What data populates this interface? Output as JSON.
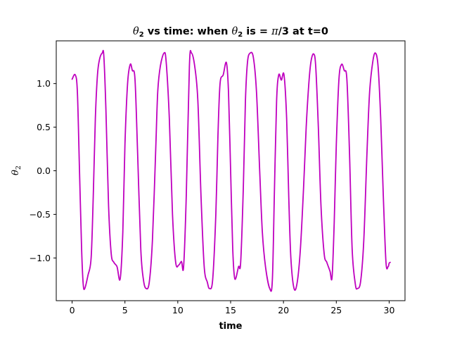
{
  "chart_data": {
    "type": "line",
    "title": {
      "theta1": "θ",
      "sub1": "2",
      "mid": " vs time: when ",
      "theta2": "θ",
      "sub2": "2",
      "mid2": " is = ",
      "pi": "π",
      "tail": "/3 at t=0"
    },
    "xlabel": "time",
    "ylabel": {
      "symbol": "θ",
      "sub": "2"
    },
    "xlim": [
      -1.5,
      31.5
    ],
    "ylim": [
      -1.49,
      1.49
    ],
    "x_ticks": [
      0,
      5,
      10,
      15,
      20,
      25,
      30
    ],
    "x_tick_labels": [
      "0",
      "5",
      "10",
      "15",
      "20",
      "25",
      "30"
    ],
    "y_ticks": [
      -1.0,
      -0.5,
      0.0,
      0.5,
      1.0
    ],
    "y_tick_labels": [
      "−1.0",
      "−0.5",
      "0.0",
      "0.5",
      "1.0"
    ],
    "grid": false,
    "series": [
      {
        "color": "#bf00bf",
        "points": [
          [
            0.0,
            1.05
          ],
          [
            0.3,
            1.1
          ],
          [
            0.5,
            0.9
          ],
          [
            0.7,
            0.0
          ],
          [
            0.9,
            -0.9
          ],
          [
            1.05,
            -1.3
          ],
          [
            1.2,
            -1.35
          ],
          [
            1.5,
            -1.2
          ],
          [
            1.8,
            -1.0
          ],
          [
            2.0,
            -0.3
          ],
          [
            2.2,
            0.6
          ],
          [
            2.4,
            1.1
          ],
          [
            2.6,
            1.28
          ],
          [
            2.85,
            1.35
          ],
          [
            3.0,
            1.32
          ],
          [
            3.2,
            0.7
          ],
          [
            3.45,
            -0.4
          ],
          [
            3.7,
            -0.95
          ],
          [
            3.95,
            -1.05
          ],
          [
            4.25,
            -1.1
          ],
          [
            4.55,
            -1.24
          ],
          [
            4.8,
            -0.7
          ],
          [
            5.0,
            0.3
          ],
          [
            5.25,
            1.0
          ],
          [
            5.5,
            1.22
          ],
          [
            5.7,
            1.15
          ],
          [
            5.95,
            1.05
          ],
          [
            6.2,
            0.2
          ],
          [
            6.5,
            -0.9
          ],
          [
            6.75,
            -1.25
          ],
          [
            7.0,
            -1.35
          ],
          [
            7.3,
            -1.28
          ],
          [
            7.6,
            -0.8
          ],
          [
            7.9,
            0.2
          ],
          [
            8.1,
            0.9
          ],
          [
            8.35,
            1.2
          ],
          [
            8.7,
            1.35
          ],
          [
            8.9,
            1.25
          ],
          [
            9.2,
            0.6
          ],
          [
            9.5,
            -0.5
          ],
          [
            9.8,
            -1.05
          ],
          [
            10.1,
            -1.08
          ],
          [
            10.35,
            -1.04
          ],
          [
            10.55,
            -1.1
          ],
          [
            10.8,
            -0.3
          ],
          [
            11.1,
            1.2
          ],
          [
            11.3,
            1.35
          ],
          [
            11.6,
            1.2
          ],
          [
            11.9,
            0.8
          ],
          [
            12.2,
            -0.3
          ],
          [
            12.5,
            -1.1
          ],
          [
            12.8,
            -1.28
          ],
          [
            13.0,
            -1.35
          ],
          [
            13.3,
            -1.25
          ],
          [
            13.6,
            -0.5
          ],
          [
            13.8,
            0.4
          ],
          [
            14.0,
            1.0
          ],
          [
            14.3,
            1.1
          ],
          [
            14.6,
            1.24
          ],
          [
            14.8,
            0.9
          ],
          [
            15.0,
            0.0
          ],
          [
            15.2,
            -0.9
          ],
          [
            15.4,
            -1.24
          ],
          [
            15.75,
            -1.1
          ],
          [
            15.95,
            -1.05
          ],
          [
            16.2,
            -0.2
          ],
          [
            16.4,
            0.8
          ],
          [
            16.6,
            1.25
          ],
          [
            16.85,
            1.35
          ],
          [
            17.15,
            1.3
          ],
          [
            17.45,
            0.9
          ],
          [
            17.75,
            0.0
          ],
          [
            18.0,
            -0.7
          ],
          [
            18.3,
            -1.1
          ],
          [
            18.7,
            -1.35
          ],
          [
            18.95,
            -1.25
          ],
          [
            19.15,
            -0.2
          ],
          [
            19.35,
            0.8
          ],
          [
            19.55,
            1.1
          ],
          [
            19.8,
            1.04
          ],
          [
            20.05,
            1.1
          ],
          [
            20.3,
            0.6
          ],
          [
            20.5,
            -0.3
          ],
          [
            20.7,
            -1.0
          ],
          [
            21.0,
            -1.35
          ],
          [
            21.3,
            -1.28
          ],
          [
            21.6,
            -0.9
          ],
          [
            21.9,
            -0.2
          ],
          [
            22.15,
            0.5
          ],
          [
            22.4,
            1.0
          ],
          [
            22.6,
            1.25
          ],
          [
            22.85,
            1.34
          ],
          [
            23.05,
            1.2
          ],
          [
            23.3,
            0.5
          ],
          [
            23.55,
            -0.4
          ],
          [
            23.85,
            -0.95
          ],
          [
            24.1,
            -1.05
          ],
          [
            24.4,
            -1.15
          ],
          [
            24.6,
            -1.22
          ],
          [
            24.8,
            -0.6
          ],
          [
            25.0,
            0.3
          ],
          [
            25.25,
            1.05
          ],
          [
            25.5,
            1.22
          ],
          [
            25.75,
            1.15
          ],
          [
            26.0,
            1.05
          ],
          [
            26.25,
            0.2
          ],
          [
            26.5,
            -0.9
          ],
          [
            26.8,
            -1.3
          ],
          [
            27.0,
            -1.35
          ],
          [
            27.3,
            -1.27
          ],
          [
            27.6,
            -0.8
          ],
          [
            27.9,
            0.2
          ],
          [
            28.15,
            0.9
          ],
          [
            28.45,
            1.25
          ],
          [
            28.7,
            1.35
          ],
          [
            28.95,
            1.2
          ],
          [
            29.2,
            0.6
          ],
          [
            29.45,
            -0.3
          ],
          [
            29.7,
            -1.05
          ],
          [
            29.9,
            -1.1
          ],
          [
            30.0,
            -1.06
          ],
          [
            30.1,
            -1.05
          ]
        ]
      }
    ]
  }
}
